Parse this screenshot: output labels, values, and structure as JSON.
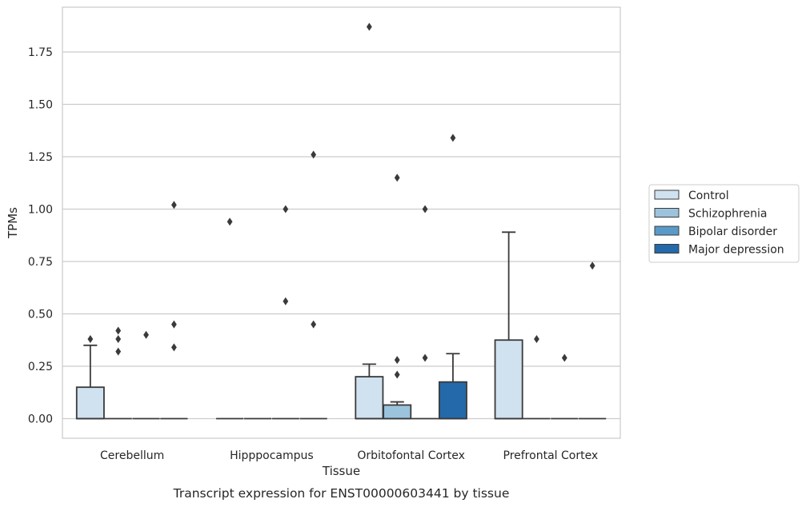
{
  "chart_data": {
    "type": "box",
    "title": "",
    "caption": "Transcript expression for ENST00000603441 by tissue",
    "xlabel": "Tissue",
    "ylabel": "TPMs",
    "ylim": [
      -0.09,
      1.965
    ],
    "yticks": [
      "0.00",
      "0.25",
      "0.50",
      "0.75",
      "1.00",
      "1.25",
      "1.50",
      "1.75"
    ],
    "grid": "horizontal",
    "legend_position": "right",
    "categories": [
      "Cerebellum",
      "Hipppocampus",
      "Orbitofontal Cortex",
      "Prefrontal Cortex"
    ],
    "series": [
      {
        "name": "Control",
        "color": "#d0e1f0",
        "boxes": [
          {
            "q1": 0,
            "median": 0,
            "q3": 0.15,
            "whisker_low": 0,
            "whisker_high": 0.35,
            "outliers": [
              0.38
            ]
          },
          {
            "q1": 0,
            "median": 0,
            "q3": 0,
            "whisker_low": 0,
            "whisker_high": 0,
            "outliers": [
              0.94
            ]
          },
          {
            "q1": 0,
            "median": 0,
            "q3": 0.2,
            "whisker_low": 0,
            "whisker_high": 0.26,
            "outliers": [
              1.87
            ]
          },
          {
            "q1": 0,
            "median": 0,
            "q3": 0.375,
            "whisker_low": 0,
            "whisker_high": 0.89,
            "outliers": []
          }
        ]
      },
      {
        "name": "Schizophrenia",
        "color": "#9cc3dc",
        "boxes": [
          {
            "q1": 0,
            "median": 0,
            "q3": 0,
            "whisker_low": 0,
            "whisker_high": 0,
            "outliers": [
              0.32,
              0.38,
              0.42
            ]
          },
          {
            "q1": 0,
            "median": 0,
            "q3": 0,
            "whisker_low": 0,
            "whisker_high": 0,
            "outliers": []
          },
          {
            "q1": 0,
            "median": 0,
            "q3": 0.065,
            "whisker_low": 0,
            "whisker_high": 0.08,
            "outliers": [
              0.21,
              0.28,
              1.15
            ]
          },
          {
            "q1": 0,
            "median": 0,
            "q3": 0,
            "whisker_low": 0,
            "whisker_high": 0,
            "outliers": [
              0.38
            ]
          }
        ]
      },
      {
        "name": "Bipolar disorder",
        "color": "#5a9ac8",
        "boxes": [
          {
            "q1": 0,
            "median": 0,
            "q3": 0,
            "whisker_low": 0,
            "whisker_high": 0,
            "outliers": [
              0.4
            ]
          },
          {
            "q1": 0,
            "median": 0,
            "q3": 0,
            "whisker_low": 0,
            "whisker_high": 0,
            "outliers": [
              0.56,
              1.0
            ]
          },
          {
            "q1": 0,
            "median": 0,
            "q3": 0,
            "whisker_low": 0,
            "whisker_high": 0,
            "outliers": [
              0.29,
              1.0
            ]
          },
          {
            "q1": 0,
            "median": 0,
            "q3": 0,
            "whisker_low": 0,
            "whisker_high": 0,
            "outliers": [
              0.29
            ]
          }
        ]
      },
      {
        "name": "Major depression",
        "color": "#2469a9",
        "boxes": [
          {
            "q1": 0,
            "median": 0,
            "q3": 0,
            "whisker_low": 0,
            "whisker_high": 0,
            "outliers": [
              0.34,
              0.45,
              1.02
            ]
          },
          {
            "q1": 0,
            "median": 0,
            "q3": 0,
            "whisker_low": 0,
            "whisker_high": 0,
            "outliers": [
              0.45,
              1.26
            ]
          },
          {
            "q1": 0,
            "median": 0,
            "q3": 0.175,
            "whisker_low": 0,
            "whisker_high": 0.31,
            "outliers": [
              1.34
            ]
          },
          {
            "q1": 0,
            "median": 0,
            "q3": 0,
            "whisker_low": 0,
            "whisker_high": 0,
            "outliers": [
              0.73
            ]
          }
        ]
      }
    ]
  }
}
